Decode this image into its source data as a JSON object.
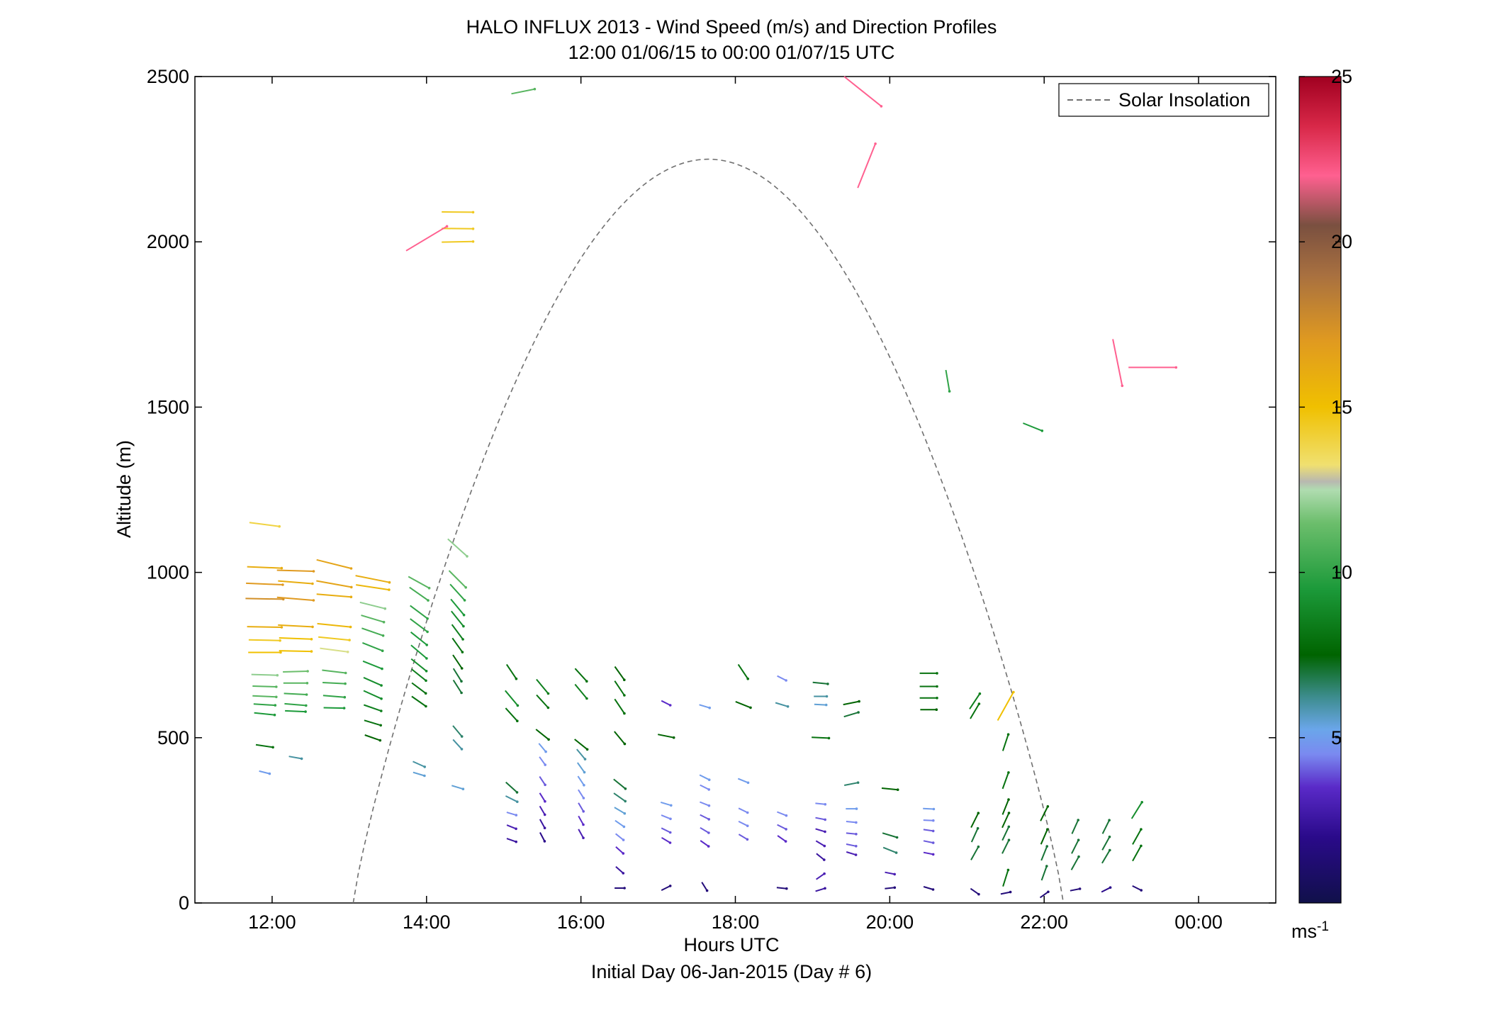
{
  "chart_data": {
    "type": "wind-profile",
    "title": "HALO INFLUX 2013 - Wind Speed (m/s) and Direction Profiles",
    "subtitle": "12:00 01/06/15 to 00:00 01/07/15  UTC",
    "xlabel": "Hours UTC",
    "xlabel2": "Initial Day 06-Jan-2015 (Day # 6)",
    "ylabel": "Altitude (m)",
    "xlim": [
      11,
      25
    ],
    "ylim": [
      0,
      2500
    ],
    "x_ticks": [
      12,
      14,
      16,
      18,
      20,
      22,
      24
    ],
    "x_tick_labels": [
      "12:00",
      "14:00",
      "16:00",
      "18:00",
      "20:00",
      "22:00",
      "00:00"
    ],
    "y_ticks": [
      0,
      500,
      1000,
      1500,
      2000,
      2500
    ],
    "y_tick_labels": [
      "0",
      "500",
      "1000",
      "1500",
      "2000",
      "2500"
    ],
    "colorbar": {
      "unit_label": "ms",
      "unit_exponent": "-1",
      "range": [
        0,
        25
      ],
      "ticks": [
        5,
        10,
        15,
        20,
        25
      ],
      "tick_labels": [
        "5",
        "10",
        "15",
        "20",
        "25"
      ]
    },
    "legend": {
      "label": "Solar Insolation",
      "position": "top-right",
      "style": "dashed",
      "color": "#707070"
    },
    "solar_curve": {
      "rise_hour": 13.05,
      "set_hour": 22.25,
      "peak_hour": 17.65,
      "peak_altitude": 2250
    },
    "wind_vector_scale_hours_per_ms": 0.028,
    "wind_vectors": [
      [
        11.9,
        1145,
        14,
        -0.13
      ],
      [
        11.9,
        1015,
        16,
        -0.04
      ],
      [
        11.9,
        965,
        17,
        -0.04
      ],
      [
        11.9,
        920,
        17.5,
        -0.02
      ],
      [
        11.9,
        835,
        16,
        -0.02
      ],
      [
        11.9,
        795,
        14.5,
        -0.02
      ],
      [
        11.9,
        758,
        15,
        0
      ],
      [
        11.9,
        690,
        12,
        -0.03
      ],
      [
        11.9,
        655,
        11,
        -0.03
      ],
      [
        11.9,
        625,
        11,
        -0.05
      ],
      [
        11.9,
        600,
        10,
        -0.06
      ],
      [
        11.9,
        572,
        9.5,
        -0.1
      ],
      [
        11.9,
        475,
        8,
        -0.15
      ],
      [
        11.9,
        395,
        5,
        -0.25
      ],
      [
        12.3,
        1005,
        17,
        -0.03
      ],
      [
        12.3,
        970,
        16,
        -0.08
      ],
      [
        12.3,
        920,
        17,
        -0.08
      ],
      [
        12.3,
        838,
        16,
        -0.05
      ],
      [
        12.3,
        800,
        15,
        -0.04
      ],
      [
        12.3,
        762,
        15,
        -0.02
      ],
      [
        12.3,
        700,
        11.5,
        0.03
      ],
      [
        12.3,
        665,
        11,
        0
      ],
      [
        12.3,
        632,
        10.5,
        -0.05
      ],
      [
        12.3,
        600,
        10,
        -0.08
      ],
      [
        12.3,
        580,
        9.5,
        -0.04
      ],
      [
        12.3,
        440,
        6,
        -0.18
      ],
      [
        12.8,
        1025,
        16.5,
        -0.25
      ],
      [
        12.8,
        965,
        16.5,
        -0.18
      ],
      [
        12.8,
        930,
        16,
        -0.08
      ],
      [
        12.8,
        840,
        15.5,
        -0.1
      ],
      [
        12.8,
        800,
        14.5,
        -0.1
      ],
      [
        12.8,
        765,
        13,
        -0.13
      ],
      [
        12.8,
        700,
        11,
        -0.12
      ],
      [
        12.8,
        665,
        10.5,
        -0.05
      ],
      [
        12.8,
        625,
        10,
        -0.08
      ],
      [
        12.8,
        590,
        9.5,
        -0.02
      ],
      [
        13.3,
        980,
        16,
        -0.2
      ],
      [
        13.3,
        955,
        15.5,
        -0.15
      ],
      [
        13.3,
        900,
        12,
        -0.25
      ],
      [
        13.3,
        860,
        11,
        -0.3
      ],
      [
        13.3,
        820,
        10.5,
        -0.35
      ],
      [
        13.3,
        775,
        10,
        -0.4
      ],
      [
        13.3,
        720,
        9.5,
        -0.4
      ],
      [
        13.3,
        670,
        9,
        -0.45
      ],
      [
        13.3,
        630,
        9,
        -0.45
      ],
      [
        13.3,
        590,
        8.5,
        -0.35
      ],
      [
        13.3,
        545,
        8,
        -0.3
      ],
      [
        13.3,
        500,
        7.5,
        -0.35
      ],
      [
        13.9,
        970,
        11,
        -0.55
      ],
      [
        13.9,
        935,
        10.5,
        -0.7
      ],
      [
        13.9,
        880,
        10,
        -0.75
      ],
      [
        13.9,
        840,
        10,
        -0.75
      ],
      [
        13.9,
        800,
        9.5,
        -0.8
      ],
      [
        13.9,
        760,
        9.5,
        -0.85
      ],
      [
        13.9,
        720,
        9,
        -0.8
      ],
      [
        13.9,
        690,
        8.5,
        -0.8
      ],
      [
        13.9,
        650,
        8,
        -0.75
      ],
      [
        13.9,
        610,
        8,
        -0.7
      ],
      [
        13.9,
        420,
        6,
        -0.45
      ],
      [
        13.9,
        390,
        5.5,
        -0.3
      ],
      [
        14.4,
        1075,
        12,
        -0.9
      ],
      [
        14.4,
        980,
        11,
        -1
      ],
      [
        14.4,
        940,
        10,
        -1.1
      ],
      [
        14.4,
        895,
        9.5,
        -1.2
      ],
      [
        14.4,
        860,
        9,
        -1.25
      ],
      [
        14.4,
        820,
        8.5,
        -1.35
      ],
      [
        14.4,
        780,
        8,
        -1.4
      ],
      [
        14.4,
        730,
        7.5,
        -1.5
      ],
      [
        14.4,
        690,
        7,
        -1.6
      ],
      [
        14.4,
        655,
        7,
        -1.55
      ],
      [
        14.4,
        520,
        6.5,
        -1.2
      ],
      [
        14.4,
        480,
        6,
        -1.1
      ],
      [
        14.4,
        350,
        5.5,
        -0.3
      ],
      [
        14.4,
        2090,
        14.5,
        -0.01
      ],
      [
        14.4,
        2040,
        14.5,
        -0.01
      ],
      [
        14.4,
        2000,
        14.5,
        0.02
      ],
      [
        14.0,
        2010,
        22,
        0.6
      ],
      [
        15.25,
        2455,
        11,
        0.2
      ],
      [
        15.1,
        700,
        8,
        -1.5
      ],
      [
        15.1,
        620,
        9,
        -1.2
      ],
      [
        15.1,
        570,
        8,
        -1.1
      ],
      [
        15.1,
        350,
        7,
        -0.9
      ],
      [
        15.1,
        315,
        6,
        -0.5
      ],
      [
        15.1,
        270,
        4.5,
        -0.3
      ],
      [
        15.1,
        230,
        3,
        -0.4
      ],
      [
        15.1,
        190,
        2.5,
        -0.35
      ],
      [
        15.5,
        655,
        8.5,
        -1.2
      ],
      [
        15.5,
        610,
        8,
        -1.1
      ],
      [
        15.5,
        510,
        7.5,
        -0.8
      ],
      [
        15.5,
        470,
        5,
        -1.2
      ],
      [
        15.5,
        430,
        4.5,
        -1.4
      ],
      [
        15.5,
        370,
        4,
        -1.5
      ],
      [
        15.5,
        320,
        3.5,
        -1.6
      ],
      [
        15.5,
        280,
        3,
        -1.7
      ],
      [
        15.5,
        240,
        2.5,
        -1.8
      ],
      [
        15.5,
        200,
        2,
        -1.9
      ],
      [
        16,
        690,
        8,
        -1.1
      ],
      [
        16,
        640,
        8.5,
        -1.2
      ],
      [
        16,
        480,
        7.5,
        -0.8
      ],
      [
        16,
        450,
        6,
        -1.2
      ],
      [
        16,
        410,
        5.5,
        -1.4
      ],
      [
        16,
        370,
        5,
        -1.5
      ],
      [
        16,
        330,
        4.5,
        -1.6
      ],
      [
        16,
        290,
        4,
        -1.7
      ],
      [
        16,
        250,
        3.5,
        -1.8
      ],
      [
        16,
        210,
        3,
        -1.8
      ],
      [
        16.5,
        695,
        7.5,
        -1.4
      ],
      [
        16.5,
        650,
        8,
        -1.5
      ],
      [
        16.5,
        595,
        8,
        -1.5
      ],
      [
        16.5,
        500,
        7.5,
        -1.2
      ],
      [
        16.5,
        360,
        7,
        -0.8
      ],
      [
        16.5,
        320,
        6.5,
        -0.7
      ],
      [
        16.5,
        280,
        5.5,
        -0.6
      ],
      [
        16.5,
        240,
        5,
        -0.7
      ],
      [
        16.5,
        200,
        4.5,
        -0.8
      ],
      [
        16.5,
        160,
        3.5,
        -0.9
      ],
      [
        16.5,
        100,
        2.5,
        -0.9
      ],
      [
        16.5,
        45,
        1.5,
        0
      ],
      [
        17.1,
        605,
        3.5,
        -0.5
      ],
      [
        17.1,
        505,
        7.5,
        -0.2
      ],
      [
        17.1,
        300,
        5,
        -0.3
      ],
      [
        17.1,
        260,
        4.5,
        -0.4
      ],
      [
        17.1,
        220,
        4,
        -0.5
      ],
      [
        17.1,
        190,
        3.5,
        -0.6
      ],
      [
        17.1,
        45,
        1.5,
        0.5
      ],
      [
        17.6,
        595,
        5,
        -0.3
      ],
      [
        17.6,
        380,
        5,
        -0.5
      ],
      [
        17.6,
        350,
        4.5,
        -0.5
      ],
      [
        17.6,
        300,
        4.5,
        -0.4
      ],
      [
        17.6,
        260,
        4,
        -0.5
      ],
      [
        17.6,
        220,
        4,
        -0.6
      ],
      [
        17.6,
        180,
        3.5,
        -0.7
      ],
      [
        17.6,
        50,
        1.5,
        -1.6
      ],
      [
        18.1,
        700,
        8,
        -1.5
      ],
      [
        18.1,
        600,
        7.5,
        -0.4
      ],
      [
        18.1,
        370,
        5,
        -0.4
      ],
      [
        18.1,
        280,
        4.5,
        -0.5
      ],
      [
        18.1,
        240,
        4.5,
        -0.5
      ],
      [
        18.1,
        200,
        4,
        -0.6
      ],
      [
        18.6,
        680,
        4.5,
        -0.5
      ],
      [
        18.6,
        600,
        6,
        -0.3
      ],
      [
        18.6,
        270,
        4.5,
        -0.4
      ],
      [
        18.6,
        230,
        4,
        -0.5
      ],
      [
        18.6,
        195,
        3.5,
        -0.7
      ],
      [
        18.6,
        45,
        1.5,
        -0.1
      ],
      [
        19.1,
        665,
        7,
        -0.1
      ],
      [
        19.1,
        625,
        6,
        0
      ],
      [
        19.1,
        600,
        5.5,
        -0.05
      ],
      [
        19.1,
        500,
        8,
        -0.05
      ],
      [
        19.1,
        300,
        4.5,
        -0.1
      ],
      [
        19.1,
        255,
        4,
        -0.2
      ],
      [
        19.1,
        220,
        3,
        -0.3
      ],
      [
        19.1,
        180,
        3,
        -0.6
      ],
      [
        19.1,
        140,
        2.5,
        -0.8
      ],
      [
        19.1,
        80,
        3,
        0.7
      ],
      [
        19.1,
        40,
        2.5,
        0.3
      ],
      [
        19.65,
        2455,
        22,
        -0.8
      ],
      [
        19.7,
        2230,
        22,
        2.5
      ],
      [
        19.5,
        605,
        7.5,
        0.2
      ],
      [
        19.5,
        570,
        7,
        0.3
      ],
      [
        19.5,
        360,
        6.5,
        0.2
      ],
      [
        19.5,
        285,
        5,
        0
      ],
      [
        19.5,
        245,
        4.5,
        -0.1
      ],
      [
        19.5,
        210,
        4,
        -0.1
      ],
      [
        19.5,
        175,
        4,
        -0.2
      ],
      [
        19.5,
        150,
        3,
        -0.3
      ],
      [
        20,
        345,
        7.5,
        -0.1
      ],
      [
        20,
        205,
        7,
        -0.3
      ],
      [
        20,
        160,
        6.5,
        -0.4
      ],
      [
        20,
        90,
        3,
        -0.2
      ],
      [
        20,
        45,
        1.5,
        0.1
      ],
      [
        20.5,
        695,
        8,
        0
      ],
      [
        20.5,
        655,
        8,
        0
      ],
      [
        20.5,
        620,
        8,
        0
      ],
      [
        20.5,
        585,
        7.5,
        0
      ],
      [
        20.5,
        285,
        5,
        -0.05
      ],
      [
        20.5,
        250,
        4.5,
        -0.05
      ],
      [
        20.5,
        220,
        4,
        -0.15
      ],
      [
        20.5,
        185,
        4,
        -0.2
      ],
      [
        20.5,
        150,
        3.5,
        -0.2
      ],
      [
        20.5,
        45,
        1.5,
        -0.3
      ],
      [
        20.75,
        1580,
        10,
        -6
      ],
      [
        21.1,
        610,
        8.5,
        1.5
      ],
      [
        21.1,
        580,
        8,
        1.7
      ],
      [
        21.1,
        250,
        7.5,
        2
      ],
      [
        21.1,
        205,
        7,
        2.2
      ],
      [
        21.1,
        150,
        7,
        1.8
      ],
      [
        21.1,
        35,
        1.5,
        -0.7
      ],
      [
        21.5,
        595,
        15,
        1.8
      ],
      [
        21.5,
        485,
        8,
        3
      ],
      [
        21.5,
        370,
        8,
        2.8
      ],
      [
        21.5,
        290,
        7.5,
        2.5
      ],
      [
        21.5,
        250,
        7.5,
        2.2
      ],
      [
        21.5,
        210,
        7,
        2.1
      ],
      [
        21.5,
        170,
        7,
        2
      ],
      [
        21.5,
        75,
        8,
        3.2
      ],
      [
        21.5,
        30,
        1.5,
        0.2
      ],
      [
        21.85,
        1440,
        9.5,
        -0.4
      ],
      [
        22,
        270,
        7.5,
        2
      ],
      [
        22,
        200,
        7.5,
        2.3
      ],
      [
        22,
        150,
        7,
        2.5
      ],
      [
        22,
        90,
        7,
        2.8
      ],
      [
        22,
        25,
        1.5,
        0.7
      ],
      [
        22.4,
        230,
        7,
        2.2
      ],
      [
        22.4,
        170,
        7,
        2
      ],
      [
        22.4,
        120,
        7,
        1.8
      ],
      [
        22.4,
        40,
        1.5,
        0.2
      ],
      [
        22.8,
        230,
        7,
        2
      ],
      [
        22.8,
        180,
        7,
        1.8
      ],
      [
        22.8,
        140,
        7,
        1.7
      ],
      [
        22.8,
        40,
        2,
        0.5
      ],
      [
        23.2,
        280,
        9,
        1.6
      ],
      [
        23.2,
        200,
        8,
        1.8
      ],
      [
        23.2,
        150,
        8,
        1.8
      ],
      [
        23.2,
        45,
        1.5,
        -0.5
      ],
      [
        23.4,
        1620,
        22,
        0
      ],
      [
        22.95,
        1635,
        22,
        -5
      ]
    ]
  }
}
